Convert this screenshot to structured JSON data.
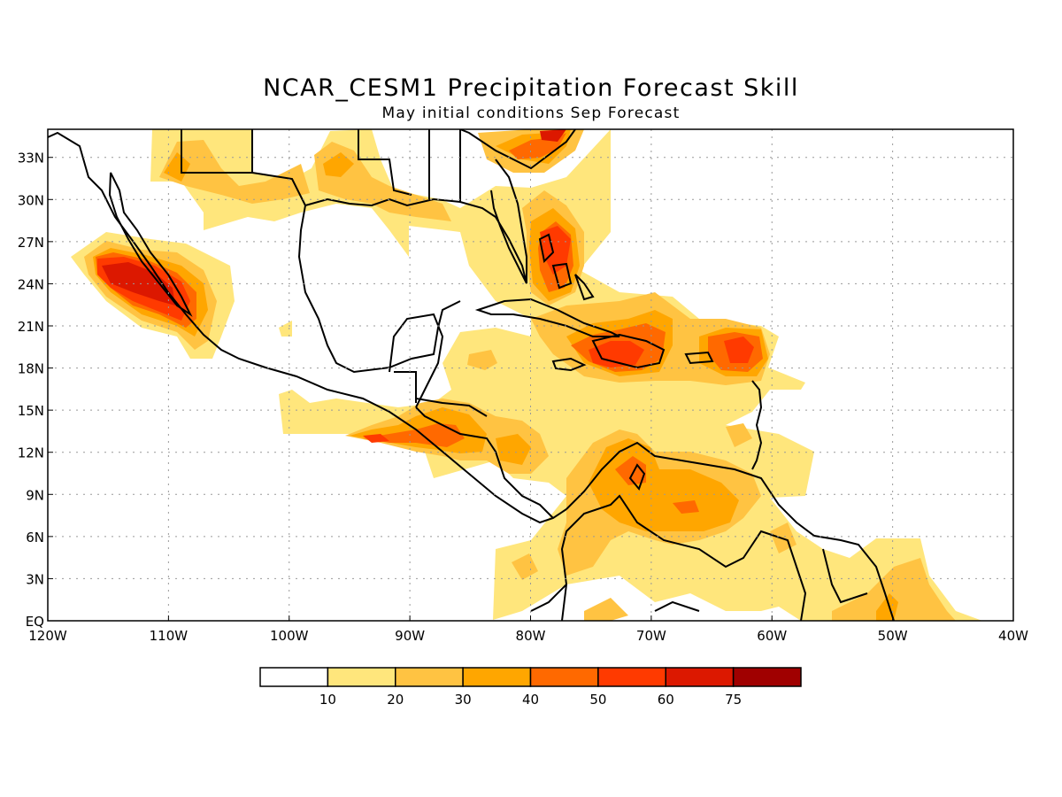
{
  "title": "NCAR_CESM1 Precipitation Forecast Skill",
  "subtitle": "May initial conditions  Sep Forecast",
  "map": {
    "lon_range": [
      -120,
      -40
    ],
    "lat_range": [
      0,
      35
    ],
    "lon_ticks": [
      {
        "value": -120,
        "label": "120W"
      },
      {
        "value": -110,
        "label": "110W"
      },
      {
        "value": -100,
        "label": "100W"
      },
      {
        "value": -90,
        "label": "90W"
      },
      {
        "value": -80,
        "label": "80W"
      },
      {
        "value": -70,
        "label": "70W"
      },
      {
        "value": -60,
        "label": "60W"
      },
      {
        "value": -50,
        "label": "50W"
      },
      {
        "value": -40,
        "label": "40W"
      }
    ],
    "lat_ticks": [
      {
        "value": 0,
        "label": "EQ"
      },
      {
        "value": 3,
        "label": "3N"
      },
      {
        "value": 6,
        "label": "6N"
      },
      {
        "value": 9,
        "label": "9N"
      },
      {
        "value": 12,
        "label": "12N"
      },
      {
        "value": 15,
        "label": "15N"
      },
      {
        "value": 18,
        "label": "18N"
      },
      {
        "value": 21,
        "label": "21N"
      },
      {
        "value": 24,
        "label": "24N"
      },
      {
        "value": 27,
        "label": "27N"
      },
      {
        "value": 30,
        "label": "30N"
      },
      {
        "value": 33,
        "label": "33N"
      }
    ],
    "grid": true
  },
  "colorbar": {
    "colors": [
      "#ffffff",
      "#ffe67c",
      "#ffc342",
      "#ffa600",
      "#ff6900",
      "#ff3a00",
      "#dc1800",
      "#a00000"
    ],
    "labels": [
      "10",
      "20",
      "30",
      "40",
      "50",
      "60",
      "75"
    ]
  }
}
